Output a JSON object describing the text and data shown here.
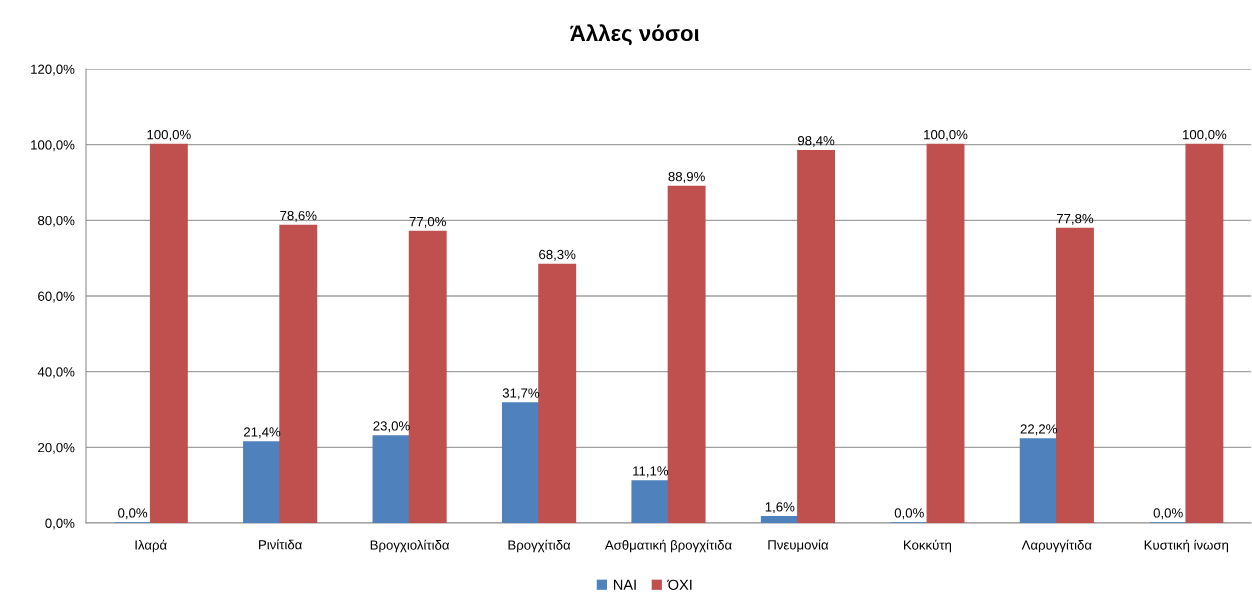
{
  "chart_data": {
    "type": "bar",
    "title": "Άλλες νόσοι",
    "categories": [
      "Ιλαρά",
      "Ρινίτιδα",
      "Βρογχιολίτιδα",
      "Βρογχίτιδα",
      "Ασθματική βρογχίτιδα",
      "Πνευμονία",
      "Κοκκύτη",
      "Λαρυγγίτιδα",
      "Κυστική ίνωση"
    ],
    "series": [
      {
        "name": "ΝΑΙ",
        "color": "#4f81bd",
        "values": [
          0.0,
          21.4,
          23.0,
          31.7,
          11.1,
          1.6,
          0.0,
          22.2,
          0.0
        ],
        "value_labels": [
          "0,0%",
          "21,4%",
          "23,0%",
          "31,7%",
          "11,1%",
          "1,6%",
          "0,0%",
          "22,2%",
          "0,0%"
        ]
      },
      {
        "name": "ΌΧΙ",
        "color": "#c0504d",
        "values": [
          100.0,
          78.6,
          77.0,
          68.3,
          88.9,
          98.4,
          100.0,
          77.8,
          100.0
        ],
        "value_labels": [
          "100,0%",
          "78,6%",
          "77,0%",
          "68,3%",
          "88,9%",
          "98,4%",
          "100,0%",
          "77,8%",
          "100,0%"
        ]
      }
    ],
    "ylim": [
      0,
      120
    ],
    "yticks": [
      {
        "value": 0,
        "label": "0,0%"
      },
      {
        "value": 20,
        "label": "20,0%"
      },
      {
        "value": 40,
        "label": "40,0%"
      },
      {
        "value": 60,
        "label": "60,0%"
      },
      {
        "value": 80,
        "label": "80,0%"
      },
      {
        "value": 100,
        "label": "100,0%"
      },
      {
        "value": 120,
        "label": "120,0%"
      }
    ],
    "grid": "y",
    "legend": "bottom"
  }
}
